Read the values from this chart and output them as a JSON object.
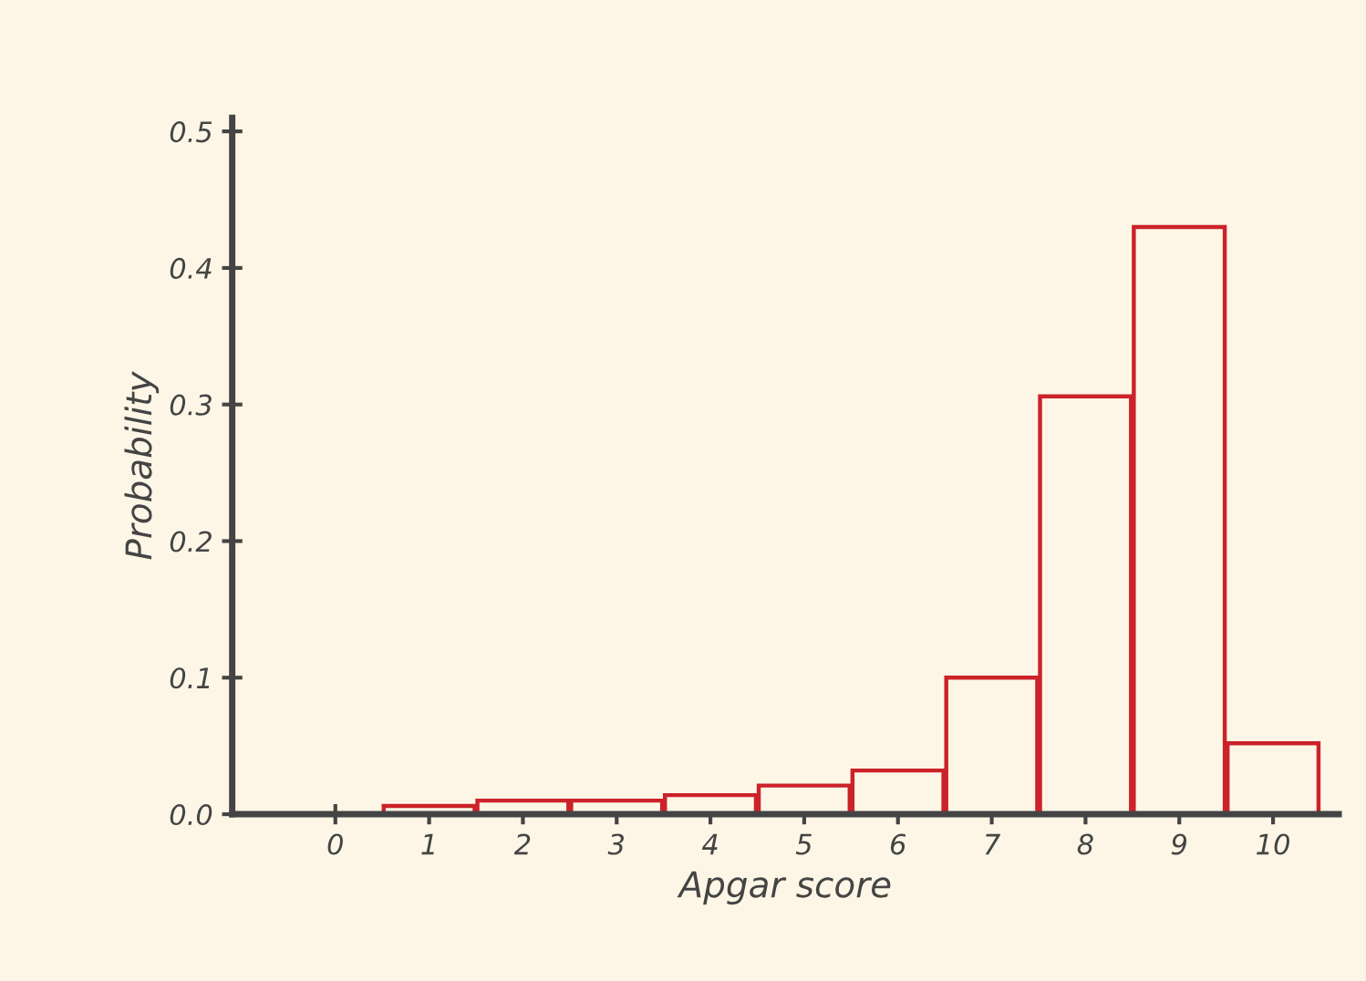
{
  "chart_data": {
    "type": "bar",
    "xlabel": "Apgar score",
    "ylabel": "Probability",
    "categories": [
      "0",
      "1",
      "2",
      "3",
      "4",
      "5",
      "6",
      "7",
      "8",
      "9",
      "10"
    ],
    "values": [
      0,
      0.006,
      0.01,
      0.01,
      0.014,
      0.021,
      0.032,
      0.1,
      0.306,
      0.43,
      0.052
    ],
    "color": "#cc2229",
    "ylim": [
      0,
      0.51
    ],
    "yticks": [
      {
        "value": 0,
        "label": "0.0"
      },
      {
        "value": 0.1,
        "label": "0.1"
      },
      {
        "value": 0.2,
        "label": "0.2"
      },
      {
        "value": 0.3,
        "label": "0.3"
      },
      {
        "value": 0.4,
        "label": "0.4"
      },
      {
        "value": 0.5,
        "label": "0.5"
      }
    ],
    "grid": false
  }
}
